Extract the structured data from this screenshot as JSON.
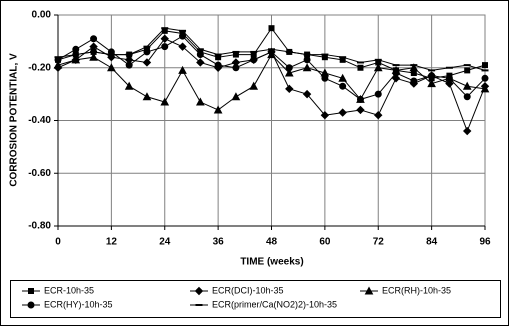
{
  "chart_data": {
    "type": "line",
    "xlabel": "TIME (weeks)",
    "ylabel": "CORROSION POTENTIAL, V",
    "x": [
      0,
      4,
      8,
      12,
      16,
      20,
      24,
      28,
      32,
      36,
      40,
      44,
      48,
      52,
      56,
      60,
      64,
      68,
      72,
      76,
      80,
      84,
      88,
      92,
      96
    ],
    "series": [
      {
        "name": "ECR-10h-35",
        "color": "#000000",
        "marker": "square",
        "values": [
          -0.17,
          -0.15,
          -0.14,
          -0.15,
          -0.15,
          -0.13,
          -0.06,
          -0.07,
          -0.14,
          -0.16,
          -0.15,
          -0.15,
          -0.05,
          -0.14,
          -0.15,
          -0.16,
          -0.17,
          -0.2,
          -0.18,
          -0.21,
          -0.22,
          -0.24,
          -0.23,
          -0.21,
          -0.19
        ]
      },
      {
        "name": "ECR(DCI)-10h-35",
        "color": "#000000",
        "marker": "diamond",
        "values": [
          -0.2,
          -0.17,
          -0.12,
          -0.16,
          -0.17,
          -0.18,
          -0.09,
          -0.12,
          -0.18,
          -0.2,
          -0.18,
          -0.17,
          -0.14,
          -0.28,
          -0.3,
          -0.38,
          -0.37,
          -0.36,
          -0.38,
          -0.24,
          -0.26,
          -0.23,
          -0.26,
          -0.44,
          -0.27
        ]
      },
      {
        "name": "ECR(RH)-10h-35",
        "color": "#000000",
        "marker": "triangle",
        "values": [
          -0.19,
          -0.17,
          -0.16,
          -0.2,
          -0.27,
          -0.31,
          -0.33,
          -0.21,
          -0.33,
          -0.36,
          -0.31,
          -0.27,
          -0.15,
          -0.22,
          -0.2,
          -0.22,
          -0.24,
          -0.32,
          -0.2,
          -0.21,
          -0.2,
          -0.26,
          -0.24,
          -0.27,
          -0.28
        ]
      },
      {
        "name": "ECR(HY)-10h-35",
        "color": "#000000",
        "marker": "circle",
        "values": [
          -0.17,
          -0.13,
          -0.09,
          -0.14,
          -0.19,
          -0.14,
          -0.12,
          -0.08,
          -0.15,
          -0.19,
          -0.2,
          -0.17,
          -0.14,
          -0.2,
          -0.17,
          -0.24,
          -0.27,
          -0.32,
          -0.3,
          -0.22,
          -0.25,
          -0.23,
          -0.24,
          -0.31,
          -0.24
        ]
      },
      {
        "name": "ECR(primer/Ca(NO2)2)-10h-35",
        "color": "#000000",
        "marker": "dash",
        "values": [
          -0.16,
          -0.15,
          -0.14,
          -0.15,
          -0.15,
          -0.12,
          -0.05,
          -0.06,
          -0.13,
          -0.15,
          -0.14,
          -0.14,
          -0.13,
          -0.14,
          -0.15,
          -0.15,
          -0.16,
          -0.18,
          -0.17,
          -0.19,
          -0.19,
          -0.21,
          -0.2,
          -0.19,
          -0.21
        ]
      }
    ],
    "xlim": [
      0,
      96
    ],
    "xticks": [
      0,
      12,
      24,
      36,
      48,
      60,
      72,
      84,
      96
    ],
    "ylim": [
      -0.8,
      0
    ],
    "yticks": [
      {
        "value": 0,
        "label": "0.00"
      },
      {
        "value": -0.2,
        "label": "-0.20"
      },
      {
        "value": -0.4,
        "label": "-0.40"
      },
      {
        "value": -0.6,
        "label": "-0.60"
      },
      {
        "value": -0.8,
        "label": "-0.80"
      }
    ],
    "grid": true,
    "legend": "bottom"
  }
}
